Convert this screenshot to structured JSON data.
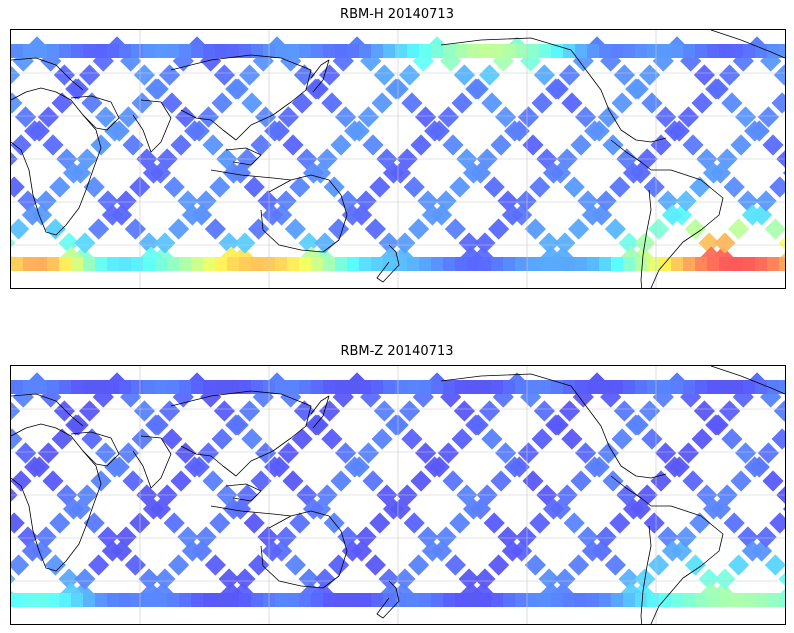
{
  "panels": [
    {
      "title": "RBM-H 20140713",
      "colormap": "jet",
      "background_level": 0.18,
      "hotspots": [
        {
          "region": "south-atlantic-south-america",
          "level": 0.88
        },
        {
          "region": "southern-indian-ocean-west",
          "level": 0.75
        },
        {
          "region": "southern-ocean-south-of-australia",
          "level": 0.72
        },
        {
          "region": "north-pacific-near-dateline",
          "level": 0.55
        }
      ]
    },
    {
      "title": "RBM-Z 20140713",
      "colormap": "jet",
      "background_level": 0.15,
      "hotspots": [
        {
          "region": "south-atlantic-south-america",
          "level": 0.5
        },
        {
          "region": "southern-indian-ocean-west",
          "level": 0.4
        }
      ]
    }
  ],
  "colors": {
    "coastline": "#000000",
    "gridline": "#c8c8c8",
    "low": "#6464f0",
    "mid": "#5ac8f0",
    "high": "#f05050"
  }
}
